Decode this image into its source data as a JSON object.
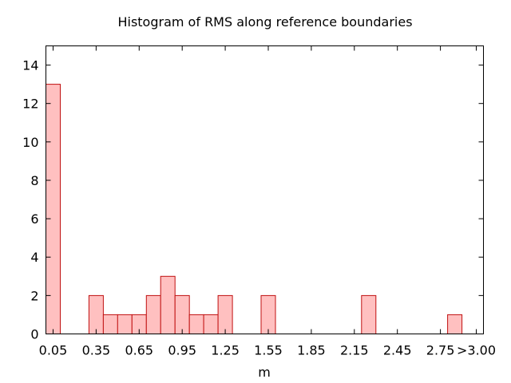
{
  "chart_data": {
    "type": "bar",
    "title": "Histogram of RMS along reference boundaries",
    "xlabel": "m",
    "ylabel": "",
    "ylim": [
      0,
      15
    ],
    "xlim": [
      0,
      3.05
    ],
    "bin_width": 0.1,
    "grid": false,
    "legend": "none",
    "colors": {
      "bar_fill": "#ffc0c0",
      "bar_stroke": "#c01010"
    },
    "x_ticks": [
      {
        "value": 0.05,
        "label": "0.05"
      },
      {
        "value": 0.35,
        "label": "0.35"
      },
      {
        "value": 0.65,
        "label": "0.65"
      },
      {
        "value": 0.95,
        "label": "0.95"
      },
      {
        "value": 1.25,
        "label": "1.25"
      },
      {
        "value": 1.55,
        "label": "1.55"
      },
      {
        "value": 1.85,
        "label": "1.85"
      },
      {
        "value": 2.15,
        "label": "2.15"
      },
      {
        "value": 2.45,
        "label": "2.45"
      },
      {
        "value": 2.75,
        "label": "2.75"
      },
      {
        "value": 3.0,
        "label": ">3.00"
      }
    ],
    "y_ticks": [
      {
        "value": 0,
        "label": "0"
      },
      {
        "value": 2,
        "label": "2"
      },
      {
        "value": 4,
        "label": "4"
      },
      {
        "value": 6,
        "label": "6"
      },
      {
        "value": 8,
        "label": "8"
      },
      {
        "value": 10,
        "label": "10"
      },
      {
        "value": 12,
        "label": "12"
      },
      {
        "value": 14,
        "label": "14"
      }
    ],
    "bins": [
      {
        "x": 0.05,
        "count": 13
      },
      {
        "x": 0.35,
        "count": 2
      },
      {
        "x": 0.45,
        "count": 1
      },
      {
        "x": 0.55,
        "count": 1
      },
      {
        "x": 0.65,
        "count": 1
      },
      {
        "x": 0.75,
        "count": 2
      },
      {
        "x": 0.85,
        "count": 3
      },
      {
        "x": 0.95,
        "count": 2
      },
      {
        "x": 1.05,
        "count": 1
      },
      {
        "x": 1.15,
        "count": 1
      },
      {
        "x": 1.25,
        "count": 2
      },
      {
        "x": 1.55,
        "count": 2
      },
      {
        "x": 2.25,
        "count": 2
      },
      {
        "x": 2.85,
        "count": 1
      }
    ]
  }
}
